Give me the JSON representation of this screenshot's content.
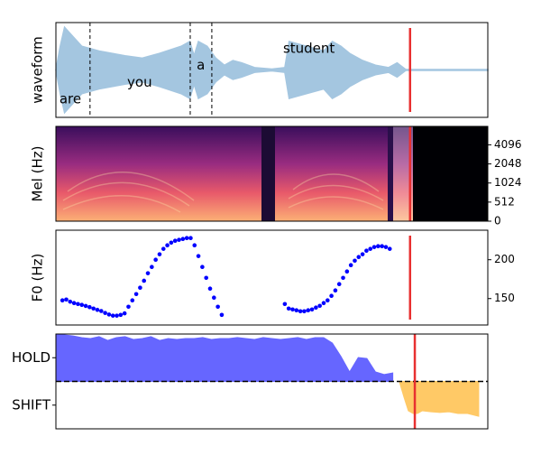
{
  "chart_data": [
    {
      "type": "waveform",
      "ylabel": "waveform",
      "xlim": [
        0,
        100
      ],
      "ylim": [
        -1,
        1
      ],
      "color": "#a4c6e0",
      "x": [
        0,
        1,
        2,
        4,
        6,
        8,
        10,
        13,
        16,
        20,
        24,
        29,
        31,
        32,
        33,
        35,
        37,
        39,
        41,
        43,
        46,
        50,
        53,
        54,
        58,
        62,
        64,
        66,
        68,
        71,
        74,
        77,
        79,
        81,
        100
      ],
      "values": [
        0.0,
        0.5,
        0.9,
        0.7,
        0.5,
        0.45,
        0.4,
        0.35,
        0.3,
        0.25,
        0.35,
        0.5,
        0.6,
        0.3,
        0.6,
        0.5,
        0.25,
        0.1,
        0.2,
        0.15,
        0.05,
        0.02,
        0.05,
        0.6,
        0.5,
        0.4,
        0.6,
        0.5,
        0.35,
        0.2,
        0.1,
        0.05,
        0.15,
        0.01,
        0.01
      ],
      "words": [
        {
          "text": "are",
          "x": 0.8,
          "y": -0.62
        },
        {
          "text": "you",
          "x": 16.5,
          "y": -0.27
        },
        {
          "text": "a",
          "x": 32.6,
          "y": 0.1
        },
        {
          "text": "student",
          "x": 52.6,
          "y": 0.45
        }
      ],
      "boundaries": [
        7.9,
        31.1,
        36.1
      ],
      "cursor_x": 82.0,
      "cursor_color": "#e83030"
    },
    {
      "type": "spectrogram",
      "ylabel": "Mel (Hz)",
      "xlim": [
        0,
        100
      ],
      "ylim": [
        0,
        8000
      ],
      "yscale": "symlog",
      "linthresh": 1024,
      "yticks": [
        0,
        512,
        1024,
        2048,
        4096
      ],
      "ytick_side": "right",
      "cursor_x": 82.0,
      "cursor_color": "#e83030"
    },
    {
      "type": "scatter",
      "ylabel": "F0 (Hz)",
      "xlim": [
        0,
        100
      ],
      "ylim": [
        116,
        238
      ],
      "yticks": [
        150,
        200
      ],
      "ytick_side": "right",
      "color": "#0000ff",
      "x": [
        1.5,
        2.4,
        3.3,
        4.2,
        5.1,
        6.0,
        6.9,
        7.8,
        8.7,
        9.6,
        10.5,
        11.4,
        12.3,
        13.2,
        14.1,
        15.0,
        15.9,
        16.8,
        17.7,
        18.6,
        19.5,
        20.4,
        21.3,
        22.2,
        23.1,
        24.0,
        24.9,
        25.8,
        26.7,
        27.6,
        28.5,
        29.4,
        30.3,
        31.2,
        32.1,
        33.0,
        33.9,
        34.8,
        35.7,
        36.6,
        37.5,
        38.4,
        53.0,
        53.9,
        54.8,
        55.7,
        56.6,
        57.5,
        58.4,
        59.3,
        60.2,
        61.1,
        62.0,
        62.9,
        63.8,
        64.7,
        65.6,
        66.5,
        67.4,
        68.3,
        69.2,
        70.1,
        71.0,
        71.9,
        72.8,
        73.7,
        74.6,
        75.5,
        76.4,
        77.3
      ],
      "values": [
        147.7,
        148.8,
        146,
        144.2,
        143,
        141.9,
        140.5,
        139,
        137.2,
        135.5,
        134,
        131.5,
        129.5,
        128,
        128,
        129,
        131,
        139.5,
        147.7,
        155.8,
        164,
        173,
        182.6,
        190.7,
        200,
        207,
        214,
        218.6,
        222,
        224.4,
        225.6,
        226.7,
        227.9,
        227.9,
        218.6,
        204.7,
        190.7,
        176.7,
        162.8,
        151.2,
        139.5,
        129,
        143,
        137.2,
        136,
        134.9,
        133.7,
        133.7,
        134.9,
        136,
        138.4,
        140.7,
        144.2,
        147.7,
        153.5,
        160.5,
        168.6,
        176.7,
        184.9,
        193,
        198.8,
        203.5,
        207,
        211.6,
        214,
        216.3,
        217.4,
        217.4,
        216.3,
        214
      ],
      "cursor_x": 82.0,
      "cursor_color": "#e83030"
    },
    {
      "type": "area",
      "xlim": [
        0,
        100
      ],
      "ylim": [
        -2,
        2
      ],
      "yticks": [
        {
          "value": 1,
          "label": "HOLD"
        },
        {
          "value": -1,
          "label": "SHIFT"
        }
      ],
      "ytick_side": "left",
      "hline": 0,
      "series": [
        {
          "color": "#6666ff",
          "x": [
            0,
            2,
            4,
            6,
            8,
            10,
            12,
            14,
            16,
            18,
            20,
            22,
            24,
            26,
            28,
            30,
            32,
            34,
            36,
            38,
            40,
            42,
            44,
            46,
            48,
            50,
            52,
            54,
            56,
            58,
            60,
            62,
            64,
            66,
            68,
            70,
            72,
            74,
            76,
            78
          ],
          "values": [
            2.0,
            1.96,
            1.92,
            1.85,
            1.81,
            1.89,
            1.73,
            1.85,
            1.89,
            1.77,
            1.81,
            1.89,
            1.73,
            1.81,
            1.77,
            1.81,
            1.81,
            1.85,
            1.77,
            1.81,
            1.81,
            1.85,
            1.81,
            1.77,
            1.85,
            1.81,
            1.77,
            1.81,
            1.85,
            1.77,
            1.85,
            1.85,
            1.62,
            1.05,
            0.4,
            1.01,
            0.97,
            0.4,
            0.29,
            0.36
          ]
        },
        {
          "color": "#ffc966",
          "x": [
            79.5,
            80.6,
            81.6,
            82.7,
            83.7,
            84.8,
            86.8,
            88.9,
            91.0,
            93.1,
            95.2,
            97.9
          ],
          "values": [
            0,
            -0.67,
            -1.24,
            -1.35,
            -1.35,
            -1.24,
            -1.28,
            -1.31,
            -1.28,
            -1.35,
            -1.35,
            -1.47
          ]
        }
      ],
      "cursor_x": 83.1,
      "cursor_color": "#e83030"
    }
  ]
}
